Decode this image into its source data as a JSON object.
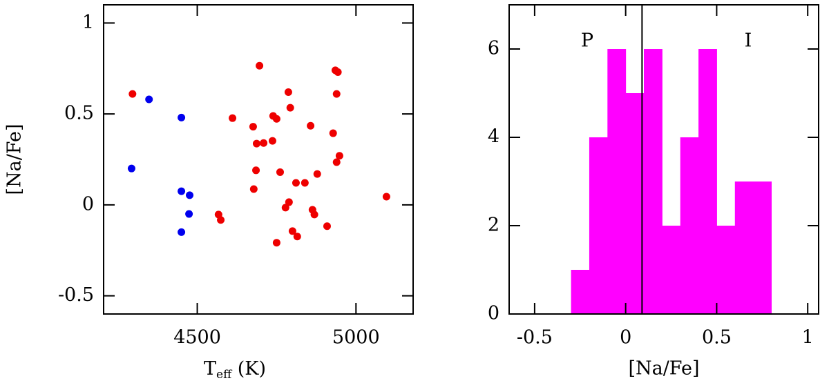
{
  "chart_data": [
    {
      "type": "scatter",
      "xlabel_parts": [
        "T",
        "eff",
        " (K)"
      ],
      "ylabel": "[Na/Fe]",
      "xlim": [
        4205,
        5180
      ],
      "xticks": [
        4500,
        5000
      ],
      "ylim": [
        -0.6,
        1.1
      ],
      "yticks": [
        -0.5,
        0,
        0.5,
        1
      ],
      "series": [
        {
          "color": "#0000ee",
          "x": [
            4293,
            4348,
            4450,
            4450,
            4476,
            4474,
            4450
          ],
          "values": [
            0.2,
            0.58,
            0.48,
            0.075,
            0.053,
            -0.05,
            -0.15
          ]
        },
        {
          "color": "#ee0000",
          "x": [
            4296,
            4696,
            4611,
            4676,
            4687,
            4709,
            4737,
            4739,
            4750,
            4685,
            4678,
            4761,
            4787,
            4793,
            4857,
            4928,
            4939,
            4948,
            4935,
            4943,
            4939,
            4811,
            4839,
            4878,
            4789,
            4778,
            4863,
            4869,
            4800,
            4815,
            4750,
            4909,
            4567,
            4574,
            5096
          ],
          "values": [
            0.61,
            0.765,
            0.477,
            0.43,
            0.337,
            0.34,
            0.352,
            0.489,
            0.473,
            0.19,
            0.087,
            0.18,
            0.62,
            0.534,
            0.435,
            0.394,
            0.235,
            0.27,
            0.74,
            0.73,
            0.61,
            0.121,
            0.121,
            0.17,
            0.015,
            -0.015,
            -0.027,
            -0.053,
            -0.144,
            -0.174,
            -0.208,
            -0.117,
            -0.053,
            -0.083,
            0.045
          ]
        }
      ]
    },
    {
      "type": "histogram",
      "xlabel": "[Na/Fe]",
      "color": "#ff00ff",
      "bins": [
        -0.3,
        -0.2,
        -0.1,
        0,
        0.1,
        0.2,
        0.3,
        0.4,
        0.5,
        0.6,
        0.7,
        0.8
      ],
      "values": [
        1,
        4,
        6,
        5,
        6,
        2,
        4,
        6,
        2,
        3,
        3
      ],
      "vline": 0.09,
      "annotations": [
        "P",
        "I"
      ],
      "xlim": [
        -0.64,
        1.06
      ],
      "xticks": [
        -0.5,
        0,
        0.5,
        1
      ],
      "ylim": [
        0,
        7
      ],
      "yticks": [
        0,
        2,
        4,
        6
      ]
    }
  ]
}
